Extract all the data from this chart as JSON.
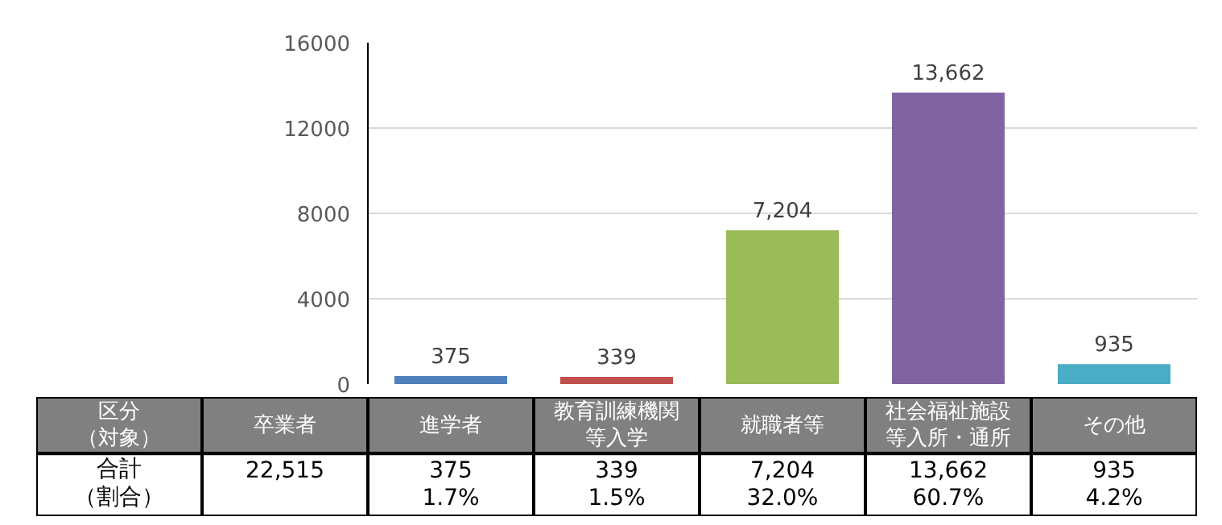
{
  "chart_data": {
    "type": "bar",
    "categories": [
      "進学者",
      "教育訓練機関等入学",
      "就職者等",
      "社会福祉施設等入所・通所",
      "その他"
    ],
    "values": [
      375,
      339,
      7204,
      13662,
      935
    ],
    "colors": [
      "#4f81bd",
      "#c0504d",
      "#9bbb59",
      "#8064a2",
      "#4bacc6"
    ],
    "value_labels": [
      "375",
      "339",
      "7,204",
      "13,662",
      "935"
    ],
    "ylim": [
      0,
      16000
    ],
    "yticks": [
      0,
      4000,
      8000,
      12000,
      16000
    ],
    "grid": "y",
    "annotations": [
      "区分（対象）",
      "卒業者",
      "合計（割合）",
      "22,515",
      "1.7%",
      "1.5%",
      "32.0%",
      "60.7%",
      "4.2%"
    ]
  }
}
